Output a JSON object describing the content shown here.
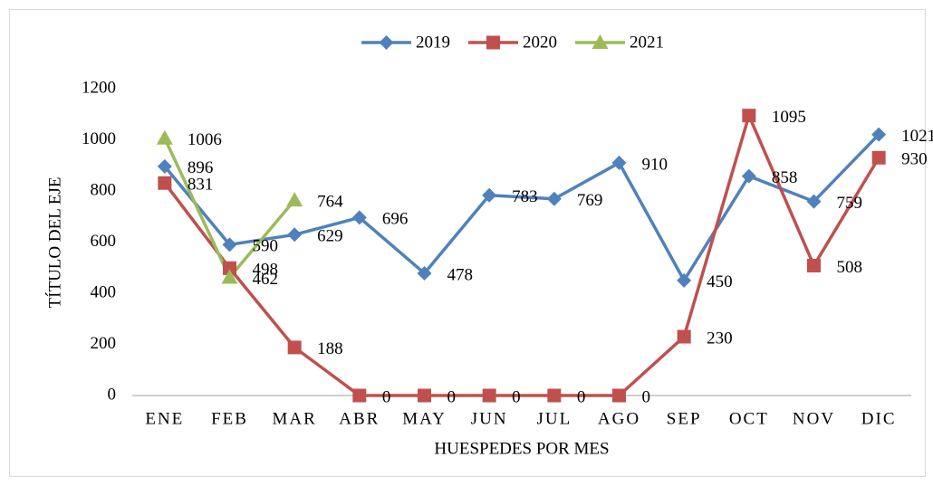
{
  "chart_data": {
    "type": "line",
    "categories": [
      "ENE",
      "FEB",
      "MAR",
      "ABR",
      "MAY",
      "JUN",
      "JUL",
      "AGO",
      "SEP",
      "OCT",
      "NOV",
      "DIC"
    ],
    "series": [
      {
        "name": "2019",
        "color": "#4f81bd",
        "marker": "diamond",
        "values": [
          896,
          590,
          629,
          696,
          478,
          783,
          769,
          910,
          450,
          858,
          759,
          1021
        ]
      },
      {
        "name": "2020",
        "color": "#c0504d",
        "marker": "square",
        "values": [
          831,
          498,
          188,
          0,
          0,
          0,
          0,
          0,
          230,
          1095,
          508,
          930
        ]
      },
      {
        "name": "2021",
        "color": "#9bbb59",
        "marker": "triangle",
        "values": [
          1006,
          462,
          764,
          null,
          null,
          null,
          null,
          null,
          null,
          null,
          null,
          null
        ]
      }
    ],
    "ylim": [
      0,
      1200
    ],
    "yticks": [
      0,
      200,
      400,
      600,
      800,
      1000,
      1200
    ],
    "xlabel": "HUESPEDES POR MES",
    "ylabel": "TÍTULO DEL EJE",
    "grid": false,
    "legend": "top",
    "data_labels": true
  }
}
